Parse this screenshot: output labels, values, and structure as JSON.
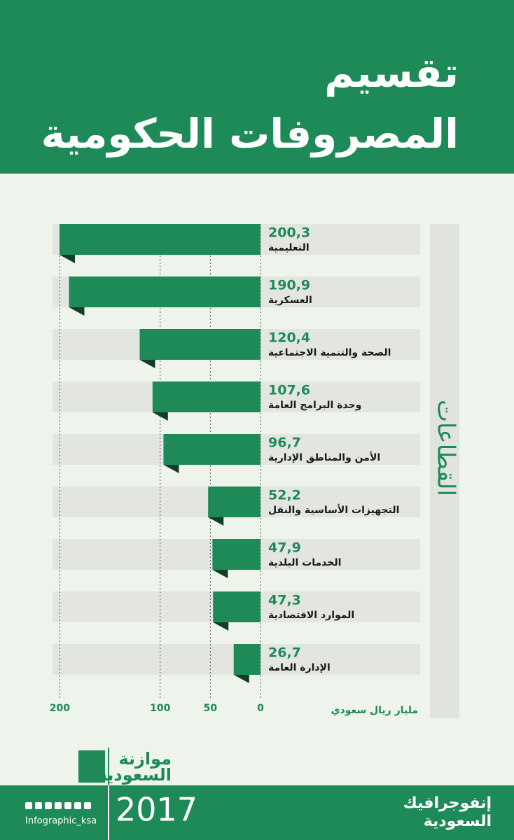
{
  "chart_data": {
    "type": "hbar",
    "title": [
      "تقسيم",
      "المصروفات الحكومية"
    ],
    "axis_label": "مليار ريال سعودي",
    "category_axis_label": "القطاعات",
    "categories": [
      "التعليمية",
      "العسكرية",
      "الصحة والتنمية الاجتماعية",
      "وحدة البرامج العامة",
      "الأمن والمناطق الإدارية",
      "التجهيزات الأساسية والنقل",
      "الخدمات البلدية",
      "الموارد الاقتصادية",
      "الإدارة العامة"
    ],
    "values": [
      200.3,
      190.9,
      120.4,
      107.6,
      96.7,
      52.2,
      47.9,
      47.3,
      26.7
    ],
    "value_labels": [
      "200,3",
      "190,9",
      "120,4",
      "107,6",
      "96,7",
      "52,2",
      "47,9",
      "47,3",
      "26,7"
    ],
    "color": "#1e8a57",
    "xlim": [
      0,
      200.3
    ],
    "xticks": [
      0,
      50,
      100,
      200
    ],
    "grid": true
  },
  "footer": {
    "logo": [
      "موازنة",
      "السعودية"
    ],
    "year": "2017",
    "handle": "Infographic_ksa",
    "brand": [
      "إنفوجرافيك",
      "السعودية"
    ]
  }
}
